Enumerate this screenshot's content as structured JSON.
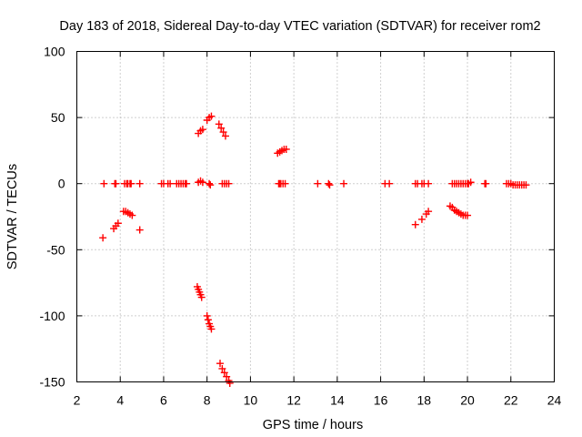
{
  "chart_data": {
    "type": "scatter",
    "title": "Day 183 of 2018, Sidereal Day-to-day VTEC variation (SDTVAR) for receiver rom2",
    "xlabel": "GPS time / hours",
    "ylabel": "SDTVAR / TECUs",
    "xlim": [
      2,
      24
    ],
    "ylim": [
      -150,
      100
    ],
    "xticks": [
      2,
      4,
      6,
      8,
      10,
      12,
      14,
      16,
      18,
      20,
      22,
      24
    ],
    "yticks": [
      -150,
      -100,
      -50,
      0,
      50,
      100
    ],
    "grid": true,
    "marker": "+",
    "color": "#ff0000",
    "series": [
      {
        "name": "SDTVAR",
        "points": [
          [
            3.25,
            0
          ],
          [
            3.75,
            0
          ],
          [
            3.8,
            0
          ],
          [
            4.2,
            0
          ],
          [
            4.3,
            0
          ],
          [
            4.35,
            0
          ],
          [
            4.45,
            0
          ],
          [
            4.5,
            0
          ],
          [
            4.9,
            0
          ],
          [
            5.9,
            0
          ],
          [
            6.0,
            0
          ],
          [
            6.2,
            0
          ],
          [
            6.3,
            0
          ],
          [
            6.6,
            0
          ],
          [
            6.7,
            0
          ],
          [
            6.8,
            0
          ],
          [
            6.9,
            0
          ],
          [
            7.0,
            0
          ],
          [
            7.05,
            0
          ],
          [
            7.6,
            1
          ],
          [
            7.7,
            2
          ],
          [
            7.8,
            1
          ],
          [
            8.1,
            0
          ],
          [
            8.15,
            -1
          ],
          [
            8.7,
            0
          ],
          [
            8.8,
            0
          ],
          [
            8.9,
            0
          ],
          [
            9.0,
            0
          ],
          [
            11.3,
            0
          ],
          [
            11.35,
            0
          ],
          [
            11.4,
            0
          ],
          [
            11.5,
            0
          ],
          [
            11.6,
            0
          ],
          [
            13.1,
            0
          ],
          [
            13.6,
            0
          ],
          [
            13.65,
            -1
          ],
          [
            14.3,
            0
          ],
          [
            16.2,
            0
          ],
          [
            16.4,
            0
          ],
          [
            17.6,
            0
          ],
          [
            17.7,
            0
          ],
          [
            17.9,
            0
          ],
          [
            18.0,
            0
          ],
          [
            18.2,
            0
          ],
          [
            19.3,
            0
          ],
          [
            19.4,
            0
          ],
          [
            19.5,
            0
          ],
          [
            19.6,
            0
          ],
          [
            19.7,
            0
          ],
          [
            19.8,
            0
          ],
          [
            19.9,
            0
          ],
          [
            20.0,
            0
          ],
          [
            20.05,
            0
          ],
          [
            20.15,
            1
          ],
          [
            20.8,
            0
          ],
          [
            20.85,
            0
          ],
          [
            21.8,
            0
          ],
          [
            21.9,
            0
          ],
          [
            22.0,
            0
          ],
          [
            22.1,
            -1
          ],
          [
            22.2,
            -1
          ],
          [
            22.3,
            -1
          ],
          [
            22.4,
            -1
          ],
          [
            22.5,
            -1
          ],
          [
            22.6,
            -1
          ],
          [
            22.7,
            -1
          ],
          [
            3.2,
            -41
          ],
          [
            3.7,
            -34
          ],
          [
            3.8,
            -32
          ],
          [
            3.9,
            -30
          ],
          [
            4.15,
            -21
          ],
          [
            4.25,
            -21
          ],
          [
            4.35,
            -22
          ],
          [
            4.45,
            -23
          ],
          [
            4.55,
            -24
          ],
          [
            4.9,
            -35
          ],
          [
            7.6,
            38
          ],
          [
            7.7,
            40
          ],
          [
            7.8,
            41
          ],
          [
            8.0,
            48
          ],
          [
            8.1,
            50
          ],
          [
            8.2,
            51
          ],
          [
            8.55,
            45
          ],
          [
            8.65,
            42
          ],
          [
            8.75,
            39
          ],
          [
            8.85,
            36
          ],
          [
            11.25,
            23
          ],
          [
            11.35,
            24
          ],
          [
            11.45,
            25
          ],
          [
            11.55,
            26
          ],
          [
            11.65,
            26
          ],
          [
            7.55,
            -78
          ],
          [
            7.6,
            -80
          ],
          [
            7.65,
            -82
          ],
          [
            7.7,
            -84
          ],
          [
            7.75,
            -86
          ],
          [
            8.0,
            -100
          ],
          [
            8.05,
            -103
          ],
          [
            8.1,
            -106
          ],
          [
            8.15,
            -108
          ],
          [
            8.2,
            -110
          ],
          [
            8.6,
            -136
          ],
          [
            8.7,
            -140
          ],
          [
            8.8,
            -143
          ],
          [
            8.9,
            -146
          ],
          [
            9.0,
            -149
          ],
          [
            9.05,
            -151
          ],
          [
            17.6,
            -31
          ],
          [
            17.9,
            -27
          ],
          [
            18.1,
            -23
          ],
          [
            18.2,
            -21
          ],
          [
            19.2,
            -17
          ],
          [
            19.3,
            -18
          ],
          [
            19.4,
            -20
          ],
          [
            19.5,
            -21
          ],
          [
            19.6,
            -22
          ],
          [
            19.7,
            -23
          ],
          [
            19.8,
            -24
          ],
          [
            19.9,
            -24
          ],
          [
            20.0,
            -24
          ]
        ]
      }
    ]
  }
}
